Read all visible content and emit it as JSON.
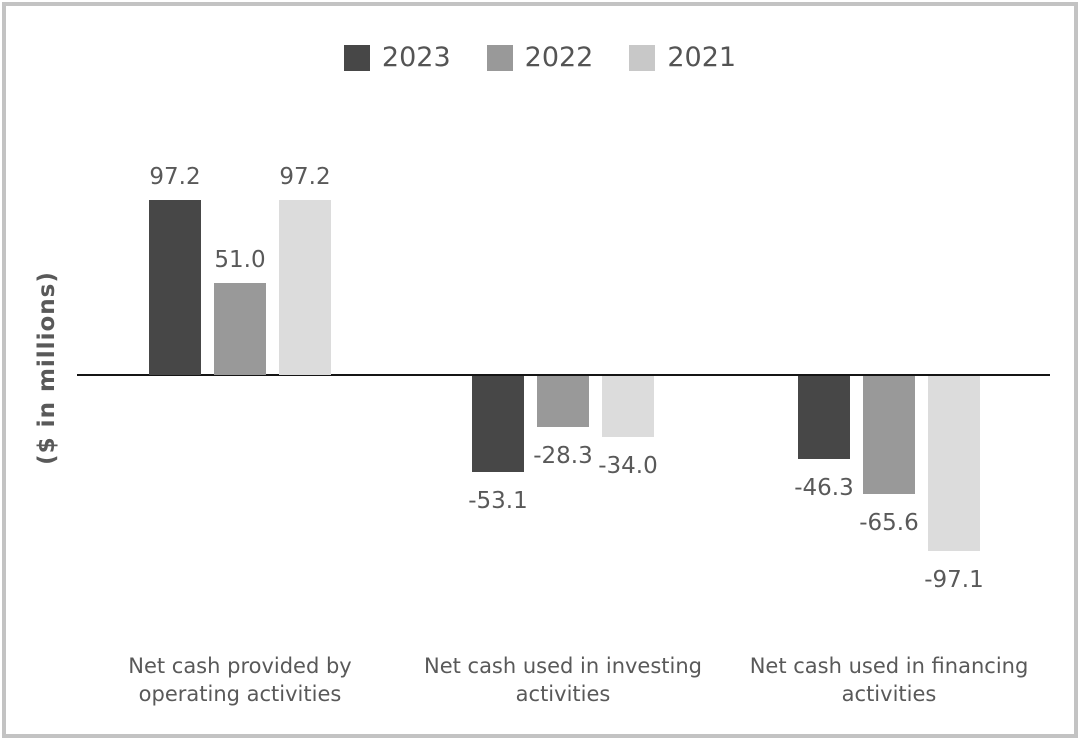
{
  "chart_data": {
    "type": "bar",
    "title": "",
    "xlabel": "",
    "ylabel": "($ in millions)",
    "ylim": [
      -110,
      110
    ],
    "grid": false,
    "legend_position": "top",
    "axis_color": "#151515",
    "text_color": "#595959",
    "categories": [
      "Net cash provided by operating activities",
      "Net cash used in investing activities",
      "Net cash used in financing activities"
    ],
    "category_lines": [
      [
        "Net cash provided by",
        "operating activities"
      ],
      [
        "Net cash used in investing",
        "activities"
      ],
      [
        "Net cash used in financing",
        "activities"
      ]
    ],
    "series": [
      {
        "name": "2023",
        "color": "#474747",
        "swatch_color": "#474747",
        "values": [
          97.2,
          -53.1,
          -46.3
        ],
        "labels": [
          "97.2",
          "-53.1",
          "-46.3"
        ]
      },
      {
        "name": "2022",
        "color": "#999999",
        "swatch_color": "#999999",
        "values": [
          51.0,
          -28.3,
          -65.6
        ],
        "labels": [
          "51.0",
          "-28.3",
          "-65.6"
        ]
      },
      {
        "name": "2021",
        "color": "#dcdcdc",
        "swatch_color": "#c8c8c8",
        "values": [
          97.2,
          -34.0,
          -97.1
        ],
        "labels": [
          "97.2",
          "-34.0",
          "-97.1"
        ]
      }
    ]
  }
}
